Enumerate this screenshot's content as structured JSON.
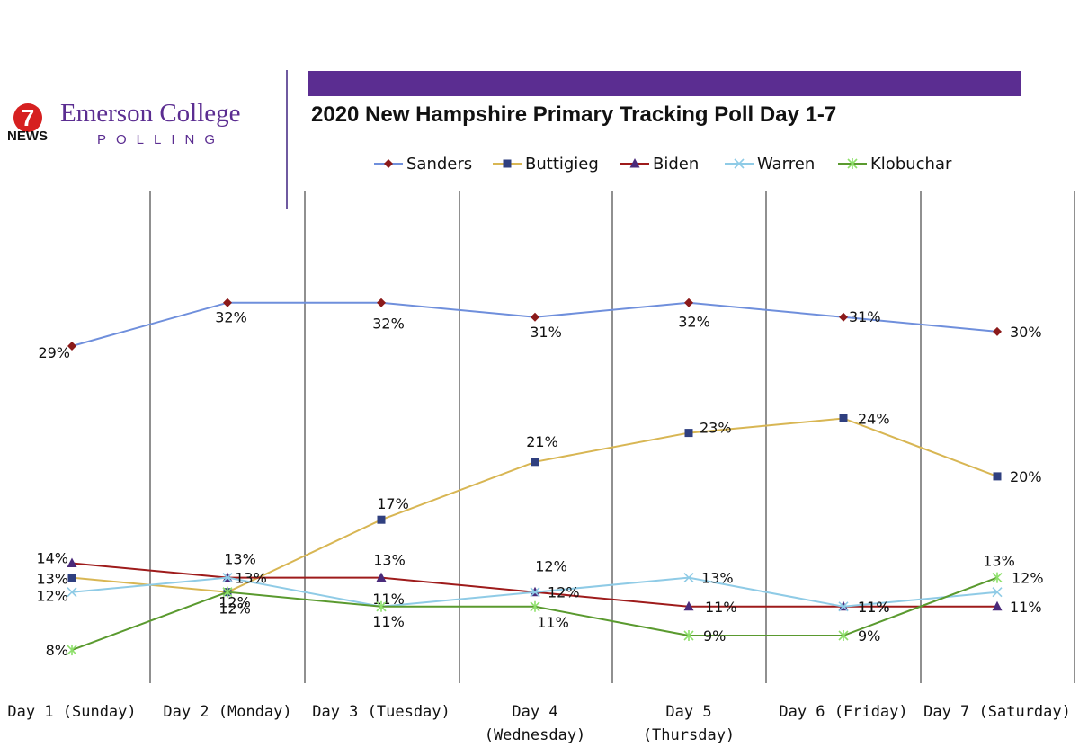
{
  "branding": {
    "logo_number": "7",
    "logo_news": "NEWS",
    "name": "Emerson College",
    "subname": "POLLING"
  },
  "colors": {
    "brand_purple": "#5b2d91",
    "sanders_line": "#6f8fdc",
    "sanders_marker": "#8b1a1a",
    "buttigieg_line": "#d8b653",
    "buttigieg_marker": "#2f3f7f",
    "biden_line": "#9e1b1b",
    "biden_marker": "#4a2a7a",
    "warren_line": "#8fcbe6",
    "klobuchar_line": "#5a9a2f",
    "klobuchar_marker": "#8ee06b"
  },
  "chart_data": {
    "type": "line",
    "title": "2020 New Hampshire Primary Tracking Poll Day 1-7",
    "categories": [
      "Day 1 (Sunday)",
      "Day 2 (Monday)",
      "Day 3 (Tuesday)",
      "Day 4 (Wednesday)",
      "Day 5 (Thursday)",
      "Day 6 (Friday)",
      "Day 7 (Saturday)"
    ],
    "category_lines": [
      [
        "Day 1 (Sunday)"
      ],
      [
        "Day 2 (Monday)"
      ],
      [
        "Day 3 (Tuesday)"
      ],
      [
        "Day 4",
        "(Wednesday)"
      ],
      [
        "Day 5",
        "(Thursday)"
      ],
      [
        "Day 6 (Friday)"
      ],
      [
        "Day 7 (Saturday)"
      ]
    ],
    "legend_position": "top",
    "grid": "vertical category separators",
    "series": [
      {
        "name": "Sanders",
        "marker": "diamond",
        "values": [
          29,
          32,
          32,
          31,
          32,
          31,
          30
        ],
        "labels": [
          "29%",
          "32%",
          "32%",
          "31%",
          "32%",
          "31%",
          "30%"
        ]
      },
      {
        "name": "Buttigieg",
        "marker": "square",
        "values": [
          13,
          12,
          17,
          21,
          23,
          24,
          20
        ],
        "labels": [
          "13%",
          "12%",
          "17%",
          "21%",
          "23%",
          "24%",
          "20%"
        ]
      },
      {
        "name": "Biden",
        "marker": "triangle",
        "values": [
          14,
          13,
          13,
          12,
          11,
          11,
          11
        ],
        "labels": [
          "14%",
          "13%",
          "13%",
          "12%",
          "11%",
          "11%",
          "11%"
        ]
      },
      {
        "name": "Warren",
        "marker": "x",
        "values": [
          12,
          13,
          11,
          12,
          13,
          11,
          12
        ],
        "labels": [
          "12%",
          "13%",
          "11%",
          "12%",
          "13%",
          "11%",
          "12%"
        ]
      },
      {
        "name": "Klobuchar",
        "marker": "star",
        "values": [
          8,
          12,
          11,
          11,
          9,
          9,
          13
        ],
        "labels": [
          "8%",
          "12%",
          "11%",
          "11%",
          "9%",
          "9%",
          "13%"
        ]
      }
    ]
  }
}
